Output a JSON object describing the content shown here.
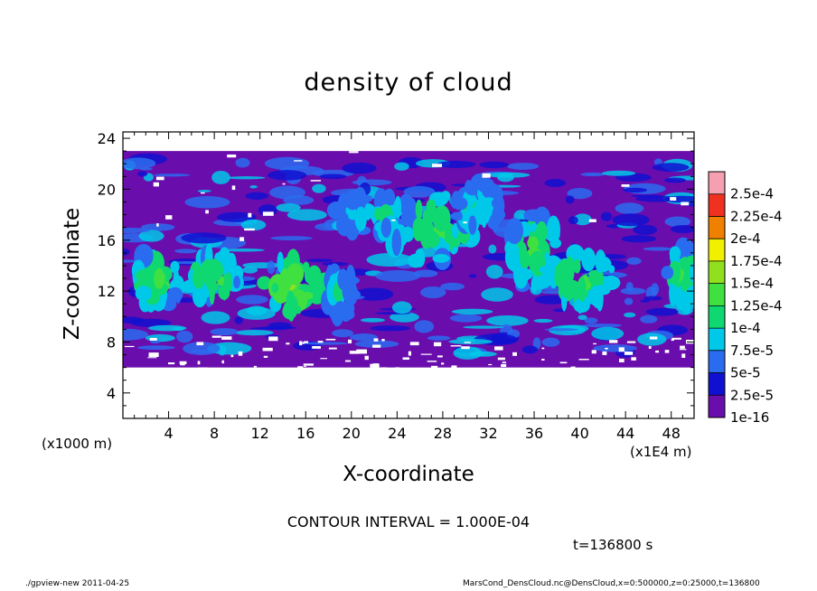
{
  "chart_data": {
    "type": "heatmap",
    "title": "density of cloud",
    "xlabel": "X-coordinate",
    "ylabel": "Z-coordinate",
    "x_unit_left": "(x1000 m)",
    "x_unit_right": "(x1E4 m)",
    "xlim": [
      0,
      50
    ],
    "ylim": [
      2,
      24.5
    ],
    "xticks": [
      4,
      8,
      12,
      16,
      20,
      24,
      28,
      32,
      36,
      40,
      44,
      48
    ],
    "yticks": [
      4,
      8,
      12,
      16,
      20,
      24
    ],
    "colorbar": {
      "levels": [
        "1e-16",
        "2.5e-5",
        "5e-5",
        "7.5e-5",
        "1e-4",
        "1.25e-4",
        "1.5e-4",
        "1.75e-4",
        "2e-4",
        "2.25e-4",
        "2.5e-4"
      ],
      "colors": [
        "#6a0dad",
        "#1010d0",
        "#2a6cf0",
        "#00c8e8",
        "#10d870",
        "#40e040",
        "#90e020",
        "#f0f000",
        "#f08000",
        "#f03020",
        "#f4a0b0"
      ]
    },
    "cloud_layer": {
      "z_bottom": 6,
      "z_top": 23
    },
    "contour_interval": "CONTOUR INTERVAL = 1.000E-04",
    "time": "t=136800 s"
  },
  "footer": {
    "left": "./gpview-new   2011-04-25",
    "right": "MarsCond_DensCloud.nc@DensCloud,x=0:500000,z=0:25000,t=136800"
  }
}
